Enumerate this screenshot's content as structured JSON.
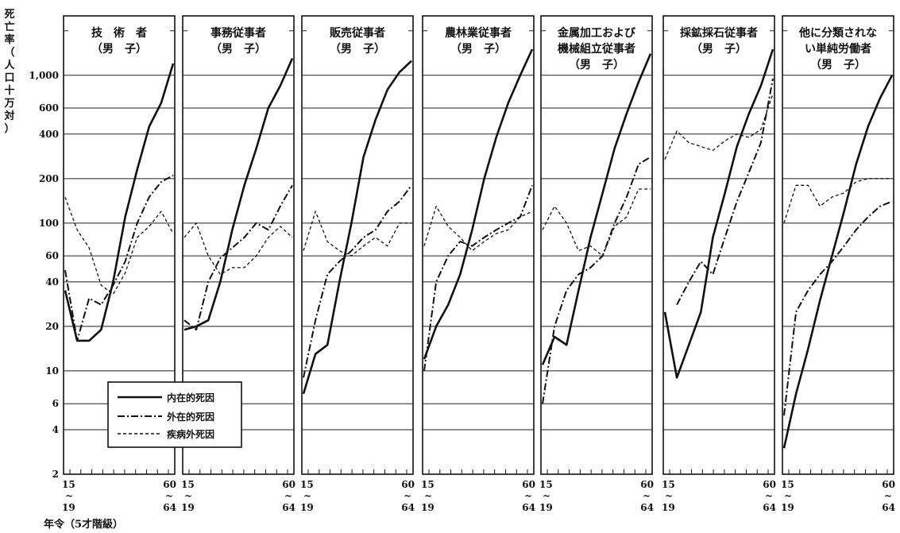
{
  "y_axis_title_chars": [
    "死",
    "亡",
    "率",
    "（",
    "人",
    "口",
    "十",
    "万",
    "対",
    "）"
  ],
  "x_axis_title": "年令（5才階級）",
  "x_tick_labels": {
    "first_top": "15",
    "first_bottom": "19",
    "last_top": "60",
    "last_bottom": "64",
    "tilde": "~"
  },
  "legend": {
    "intrinsic": "内在的死因",
    "extrinsic": "外在的死因",
    "non_disease": "疾病外死因"
  },
  "chart_data": {
    "type": "line",
    "scale": "log",
    "ylim": [
      2,
      2400
    ],
    "y_tick_labels": [
      "1,000",
      "600",
      "400",
      "200",
      "100",
      "60",
      "40",
      "20",
      "10",
      "6",
      "4",
      "2"
    ],
    "y_tick_values": [
      1000,
      600,
      400,
      200,
      100,
      60,
      40,
      20,
      10,
      6,
      4,
      2
    ],
    "gridlines": [
      2000,
      1000,
      600,
      400,
      200,
      100,
      60,
      40,
      20,
      10,
      6,
      4
    ],
    "x_points": 10,
    "panels": [
      {
        "title_lines": [
          "技　術　者",
          "（男　子）"
        ],
        "intrinsic": [
          35,
          16,
          16,
          19,
          40,
          110,
          230,
          450,
          650,
          1200
        ],
        "extrinsic": [
          48,
          16,
          31,
          28,
          38,
          55,
          100,
          150,
          190,
          210
        ],
        "non_disease": [
          150,
          90,
          68,
          38,
          33,
          46,
          80,
          95,
          120,
          85
        ]
      },
      {
        "title_lines": [
          "事務従事者",
          "（男　子）"
        ],
        "intrinsic": [
          19,
          20,
          22,
          40,
          90,
          180,
          320,
          600,
          850,
          1300
        ],
        "extrinsic": [
          22,
          19,
          40,
          58,
          68,
          80,
          100,
          90,
          130,
          180
        ],
        "non_disease": [
          80,
          100,
          60,
          45,
          50,
          50,
          60,
          80,
          95,
          80
        ]
      },
      {
        "title_lines": [
          "販売従事者",
          "（男　子）"
        ],
        "intrinsic": [
          7,
          13,
          15,
          40,
          100,
          280,
          500,
          800,
          1050,
          1250
        ],
        "extrinsic": [
          9,
          22,
          45,
          55,
          65,
          80,
          90,
          120,
          140,
          180
        ],
        "non_disease": [
          65,
          120,
          75,
          65,
          60,
          70,
          80,
          70,
          100,
          100
        ]
      },
      {
        "title_lines": [
          "農林業従事者",
          "（男　子）"
        ],
        "intrinsic": [
          12,
          20,
          28,
          45,
          90,
          200,
          380,
          650,
          1000,
          1500
        ],
        "extrinsic": [
          10,
          40,
          60,
          75,
          70,
          80,
          90,
          100,
          110,
          180
        ],
        "non_disease": [
          70,
          130,
          95,
          80,
          65,
          75,
          85,
          90,
          110,
          120
        ]
      },
      {
        "title_lines": [
          "金属加工および",
          "機械組立従事者",
          "（男　子）"
        ],
        "intrinsic": [
          11,
          17,
          15,
          35,
          80,
          160,
          320,
          550,
          900,
          1400
        ],
        "extrinsic": [
          6,
          20,
          35,
          45,
          50,
          60,
          100,
          150,
          250,
          280
        ],
        "non_disease": [
          90,
          130,
          100,
          65,
          70,
          60,
          95,
          110,
          170,
          170
        ]
      },
      {
        "title_lines": [
          "採鉱採石従事者",
          "（男　子）"
        ],
        "intrinsic": [
          25,
          9,
          15,
          25,
          80,
          160,
          330,
          550,
          850,
          1500
        ],
        "extrinsic": [
          null,
          28,
          40,
          55,
          45,
          80,
          140,
          220,
          350,
          950
        ],
        "non_disease": [
          270,
          420,
          350,
          330,
          310,
          360,
          400,
          380,
          430,
          750
        ]
      },
      {
        "title_lines": [
          "他に分類されな",
          "い単純労働者",
          "（男　子）"
        ],
        "intrinsic": [
          3,
          7,
          14,
          30,
          60,
          120,
          250,
          450,
          700,
          1000
        ],
        "extrinsic": [
          5,
          25,
          35,
          45,
          55,
          70,
          90,
          110,
          130,
          140
        ],
        "non_disease": [
          100,
          180,
          180,
          130,
          150,
          160,
          190,
          200,
          200,
          200
        ]
      }
    ]
  }
}
